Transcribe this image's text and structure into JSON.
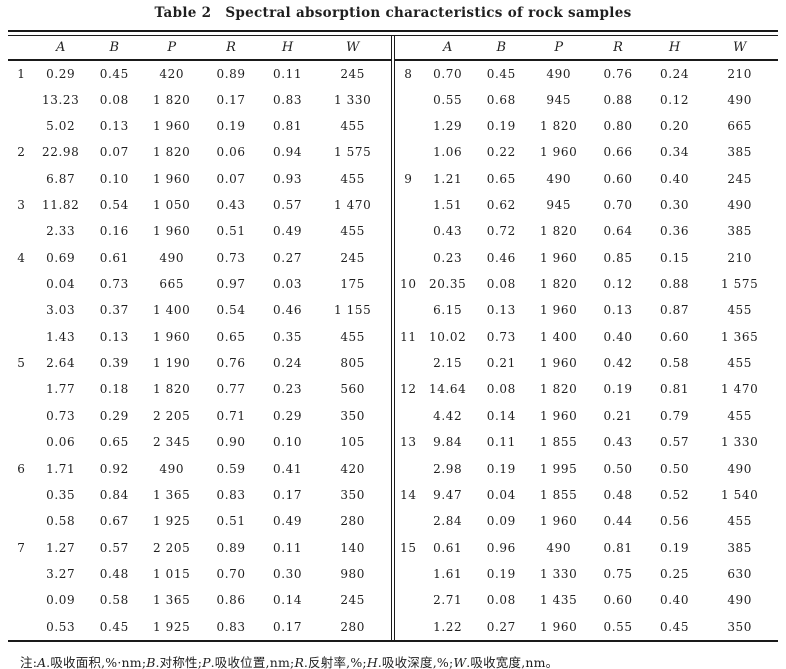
{
  "title": {
    "label": "Table 2",
    "text": "Spectral absorption characteristics of rock samples"
  },
  "table": {
    "columns": [
      "A",
      "B",
      "P",
      "R",
      "H",
      "W"
    ],
    "left_groups": [
      {
        "no": "1",
        "rows": [
          [
            "0.29",
            "0.45",
            "420",
            "0.89",
            "0.11",
            "245"
          ],
          [
            "13.23",
            "0.08",
            "1 820",
            "0.17",
            "0.83",
            "1 330"
          ],
          [
            "5.02",
            "0.13",
            "1 960",
            "0.19",
            "0.81",
            "455"
          ]
        ]
      },
      {
        "no": "2",
        "rows": [
          [
            "22.98",
            "0.07",
            "1 820",
            "0.06",
            "0.94",
            "1 575"
          ],
          [
            "6.87",
            "0.10",
            "1 960",
            "0.07",
            "0.93",
            "455"
          ]
        ]
      },
      {
        "no": "3",
        "rows": [
          [
            "11.82",
            "0.54",
            "1 050",
            "0.43",
            "0.57",
            "1 470"
          ],
          [
            "2.33",
            "0.16",
            "1 960",
            "0.51",
            "0.49",
            "455"
          ]
        ]
      },
      {
        "no": "4",
        "rows": [
          [
            "0.69",
            "0.61",
            "490",
            "0.73",
            "0.27",
            "245"
          ],
          [
            "0.04",
            "0.73",
            "665",
            "0.97",
            "0.03",
            "175"
          ],
          [
            "3.03",
            "0.37",
            "1 400",
            "0.54",
            "0.46",
            "1 155"
          ],
          [
            "1.43",
            "0.13",
            "1 960",
            "0.65",
            "0.35",
            "455"
          ]
        ]
      },
      {
        "no": "5",
        "rows": [
          [
            "2.64",
            "0.39",
            "1 190",
            "0.76",
            "0.24",
            "805"
          ],
          [
            "1.77",
            "0.18",
            "1 820",
            "0.77",
            "0.23",
            "560"
          ],
          [
            "0.73",
            "0.29",
            "2 205",
            "0.71",
            "0.29",
            "350"
          ],
          [
            "0.06",
            "0.65",
            "2 345",
            "0.90",
            "0.10",
            "105"
          ]
        ]
      },
      {
        "no": "6",
        "rows": [
          [
            "1.71",
            "0.92",
            "490",
            "0.59",
            "0.41",
            "420"
          ],
          [
            "0.35",
            "0.84",
            "1 365",
            "0.83",
            "0.17",
            "350"
          ],
          [
            "0.58",
            "0.67",
            "1 925",
            "0.51",
            "0.49",
            "280"
          ]
        ]
      },
      {
        "no": "7",
        "rows": [
          [
            "1.27",
            "0.57",
            "2 205",
            "0.89",
            "0.11",
            "140"
          ],
          [
            "3.27",
            "0.48",
            "1 015",
            "0.70",
            "0.30",
            "980"
          ],
          [
            "0.09",
            "0.58",
            "1 365",
            "0.86",
            "0.14",
            "245"
          ],
          [
            "0.53",
            "0.45",
            "1 925",
            "0.83",
            "0.17",
            "280"
          ]
        ]
      }
    ],
    "right_groups": [
      {
        "no": "8",
        "rows": [
          [
            "0.70",
            "0.45",
            "490",
            "0.76",
            "0.24",
            "210"
          ],
          [
            "0.55",
            "0.68",
            "945",
            "0.88",
            "0.12",
            "490"
          ],
          [
            "1.29",
            "0.19",
            "1 820",
            "0.80",
            "0.20",
            "665"
          ],
          [
            "1.06",
            "0.22",
            "1 960",
            "0.66",
            "0.34",
            "385"
          ]
        ]
      },
      {
        "no": "9",
        "rows": [
          [
            "1.21",
            "0.65",
            "490",
            "0.60",
            "0.40",
            "245"
          ],
          [
            "1.51",
            "0.62",
            "945",
            "0.70",
            "0.30",
            "490"
          ],
          [
            "0.43",
            "0.72",
            "1 820",
            "0.64",
            "0.36",
            "385"
          ],
          [
            "0.23",
            "0.46",
            "1 960",
            "0.85",
            "0.15",
            "210"
          ]
        ]
      },
      {
        "no": "10",
        "rows": [
          [
            "20.35",
            "0.08",
            "1 820",
            "0.12",
            "0.88",
            "1 575"
          ],
          [
            "6.15",
            "0.13",
            "1 960",
            "0.13",
            "0.87",
            "455"
          ]
        ]
      },
      {
        "no": "11",
        "rows": [
          [
            "10.02",
            "0.73",
            "1 400",
            "0.40",
            "0.60",
            "1 365"
          ],
          [
            "2.15",
            "0.21",
            "1 960",
            "0.42",
            "0.58",
            "455"
          ]
        ]
      },
      {
        "no": "12",
        "rows": [
          [
            "14.64",
            "0.08",
            "1 820",
            "0.19",
            "0.81",
            "1 470"
          ],
          [
            "4.42",
            "0.14",
            "1 960",
            "0.21",
            "0.79",
            "455"
          ]
        ]
      },
      {
        "no": "13",
        "rows": [
          [
            "9.84",
            "0.11",
            "1 855",
            "0.43",
            "0.57",
            "1 330"
          ],
          [
            "2.98",
            "0.19",
            "1 995",
            "0.50",
            "0.50",
            "490"
          ]
        ]
      },
      {
        "no": "14",
        "rows": [
          [
            "9.47",
            "0.04",
            "1 855",
            "0.48",
            "0.52",
            "1 540"
          ],
          [
            "2.84",
            "0.09",
            "1 960",
            "0.44",
            "0.56",
            "455"
          ]
        ]
      },
      {
        "no": "15",
        "rows": [
          [
            "0.61",
            "0.96",
            "490",
            "0.81",
            "0.19",
            "385"
          ],
          [
            "1.61",
            "0.19",
            "1 330",
            "0.75",
            "0.25",
            "630"
          ],
          [
            "2.71",
            "0.08",
            "1 435",
            "0.60",
            "0.40",
            "490"
          ],
          [
            "1.22",
            "0.27",
            "1 960",
            "0.55",
            "0.45",
            "350"
          ]
        ]
      }
    ]
  },
  "note_parts": [
    {
      "t": "注:"
    },
    {
      "i": "A"
    },
    {
      "t": ".吸收面积,%·nm;"
    },
    {
      "i": "B"
    },
    {
      "t": ".对称性;"
    },
    {
      "i": "P"
    },
    {
      "t": ".吸收位置,nm;"
    },
    {
      "i": "R"
    },
    {
      "t": ".反射率,%;"
    },
    {
      "i": "H"
    },
    {
      "t": ".吸收深度,%;"
    },
    {
      "i": "W"
    },
    {
      "t": ".吸收宽度,nm。"
    }
  ],
  "colors": {
    "text": "#1f1f1f",
    "rule": "#1a1a1a",
    "background": "#ffffff"
  }
}
